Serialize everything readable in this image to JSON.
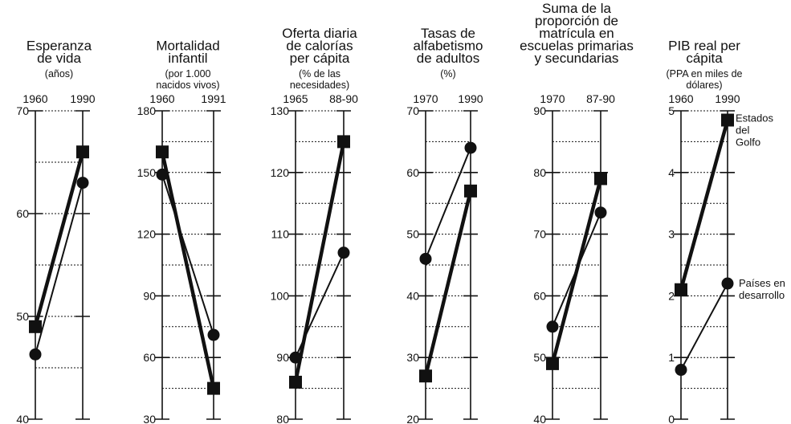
{
  "chart_data": [
    {
      "type": "line",
      "title": [
        "Esperanza",
        "de vida"
      ],
      "subtitle": [
        "(años)"
      ],
      "x": [
        "1960",
        "1990"
      ],
      "yticks": [
        "40",
        "50",
        "60",
        "70"
      ],
      "ylim": [
        40,
        70
      ],
      "series": [
        {
          "name": "Estados del Golfo",
          "marker": "square",
          "values": [
            49,
            66
          ]
        },
        {
          "name": "Países en desarrollo",
          "marker": "circle",
          "values": [
            46.3,
            63
          ]
        }
      ]
    },
    {
      "type": "line",
      "title": [
        "Mortalidad",
        "infantil"
      ],
      "subtitle": [
        "(por 1.000",
        "nacidos vivos)"
      ],
      "x": [
        "1960",
        "1991"
      ],
      "yticks": [
        "30",
        "60",
        "90",
        "120",
        "150",
        "180"
      ],
      "ylim": [
        30,
        180
      ],
      "series": [
        {
          "name": "Estados del Golfo",
          "marker": "square",
          "values": [
            160,
            45
          ]
        },
        {
          "name": "Países en desarrollo",
          "marker": "circle",
          "values": [
            149,
            71
          ]
        }
      ]
    },
    {
      "type": "line",
      "title": [
        "Oferta diaria",
        "de calorías",
        "per cápita"
      ],
      "subtitle": [
        "(% de las",
        "necesidades)"
      ],
      "x": [
        "1965",
        "88-90"
      ],
      "yticks": [
        "80",
        "90",
        "100",
        "110",
        "120",
        "130"
      ],
      "ylim": [
        80,
        130
      ],
      "series": [
        {
          "name": "Estados del Golfo",
          "marker": "square",
          "values": [
            86,
            125
          ]
        },
        {
          "name": "Países en desarrollo",
          "marker": "circle",
          "values": [
            90,
            107
          ]
        }
      ]
    },
    {
      "type": "line",
      "title": [
        "Tasas de",
        "alfabetismo",
        "de adultos"
      ],
      "subtitle": [
        "(%)"
      ],
      "x": [
        "1970",
        "1990"
      ],
      "yticks": [
        "20",
        "30",
        "40",
        "50",
        "60",
        "70"
      ],
      "ylim": [
        20,
        70
      ],
      "series": [
        {
          "name": "Estados del Golfo",
          "marker": "square",
          "values": [
            27,
            57
          ]
        },
        {
          "name": "Países en desarrollo",
          "marker": "circle",
          "values": [
            46,
            64
          ]
        }
      ]
    },
    {
      "type": "line",
      "title": [
        "Suma de la",
        "proporción de",
        "matrícula en",
        "escuelas primarias",
        "y secundarias"
      ],
      "subtitle": [],
      "x": [
        "1970",
        "87-90"
      ],
      "yticks": [
        "40",
        "50",
        "60",
        "70",
        "80",
        "90"
      ],
      "ylim": [
        40,
        90
      ],
      "series": [
        {
          "name": "Estados del Golfo",
          "marker": "square",
          "values": [
            49,
            79
          ]
        },
        {
          "name": "Países en desarrollo",
          "marker": "circle",
          "values": [
            55,
            73.5
          ]
        }
      ]
    },
    {
      "type": "line",
      "title": [
        "PIB real per",
        "cápita"
      ],
      "subtitle": [
        "(PPA en miles de",
        "dólares)"
      ],
      "x": [
        "1960",
        "1990"
      ],
      "yticks": [
        "0",
        "1",
        "2",
        "3",
        "4",
        "5"
      ],
      "ylim": [
        0,
        5
      ],
      "series": [
        {
          "name": "Estados del Golfo",
          "marker": "square",
          "values": [
            2.1,
            4.85
          ]
        },
        {
          "name": "Países en desarrollo",
          "marker": "circle",
          "values": [
            0.8,
            2.2
          ]
        }
      ]
    }
  ],
  "legend_labels": {
    "gulf": [
      "Estados",
      "del",
      "Golfo"
    ],
    "developing": [
      "Países en",
      "desarrollo"
    ]
  }
}
